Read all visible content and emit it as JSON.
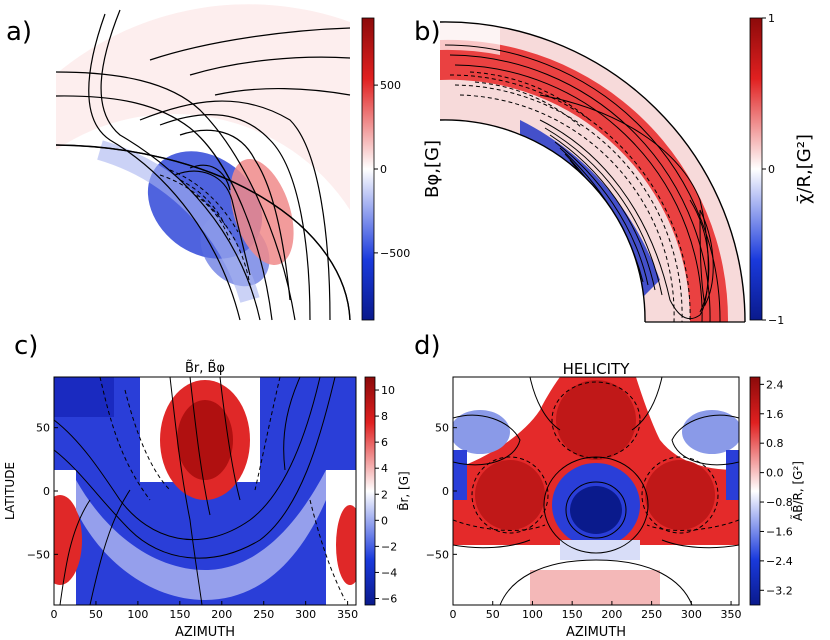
{
  "chart_data": [
    {
      "panel": "a)",
      "type": "heatmap",
      "title": "",
      "colorbar_label": "Bφ,[G]",
      "colorbar_ticks": [
        "500",
        "0",
        "−500"
      ],
      "colorbar_values": [
        500,
        0,
        -500
      ],
      "clim": [
        -900,
        900
      ],
      "colors": {
        "neg": "#0a1a8c",
        "mid": "#ffffff",
        "pos": "#8c0a0a"
      }
    },
    {
      "panel": "b)",
      "type": "heatmap",
      "title": "",
      "colorbar_label": "χ̄/R,[G²]",
      "colorbar_ticks": [
        "1",
        "0",
        "−1"
      ],
      "colorbar_values": [
        1,
        0,
        -1
      ],
      "clim": [
        -1,
        1
      ]
    },
    {
      "panel": "c)",
      "type": "heatmap",
      "title": "B̃r, B̃φ",
      "xlabel": "AZIMUTH",
      "ylabel": "LATITUDE",
      "xticks": [
        "0",
        "50",
        "100",
        "150",
        "200",
        "250",
        "300",
        "350"
      ],
      "xtick_values": [
        0,
        50,
        100,
        150,
        200,
        250,
        300,
        350
      ],
      "yticks": [
        "50",
        "0",
        "−50"
      ],
      "ytick_values": [
        50,
        0,
        -50
      ],
      "xlim": [
        0,
        360
      ],
      "ylim": [
        -90,
        90
      ],
      "colorbar_label": "B̃r, [G]",
      "colorbar_ticks": [
        "10",
        "8",
        "6",
        "4",
        "2",
        "0",
        "−2",
        "−4",
        "−6"
      ],
      "colorbar_values": [
        10,
        8,
        6,
        4,
        2,
        0,
        -2,
        -4,
        -6
      ],
      "clim": [
        -6.5,
        11
      ]
    },
    {
      "panel": "d)",
      "type": "heatmap",
      "title": "HELICITY",
      "xlabel": "AZIMUTH",
      "ylabel": "",
      "xticks": [
        "0",
        "50",
        "100",
        "150",
        "200",
        "250",
        "300",
        "350"
      ],
      "xtick_values": [
        0,
        50,
        100,
        150,
        200,
        250,
        300,
        350
      ],
      "yticks": [
        "50",
        "0",
        "−50"
      ],
      "ytick_values": [
        50,
        0,
        -50
      ],
      "xlim": [
        0,
        360
      ],
      "ylim": [
        -90,
        90
      ],
      "colorbar_label": "ÃB̃/R, [G²]",
      "colorbar_ticks": [
        "2.4",
        "1.6",
        "0.8",
        "0.0",
        "−0.8",
        "−1.6",
        "−2.4",
        "−3.2"
      ],
      "colorbar_values": [
        2.4,
        1.6,
        0.8,
        0.0,
        -0.8,
        -1.6,
        -2.4,
        -3.2
      ],
      "clim": [
        -3.6,
        2.6
      ]
    }
  ]
}
